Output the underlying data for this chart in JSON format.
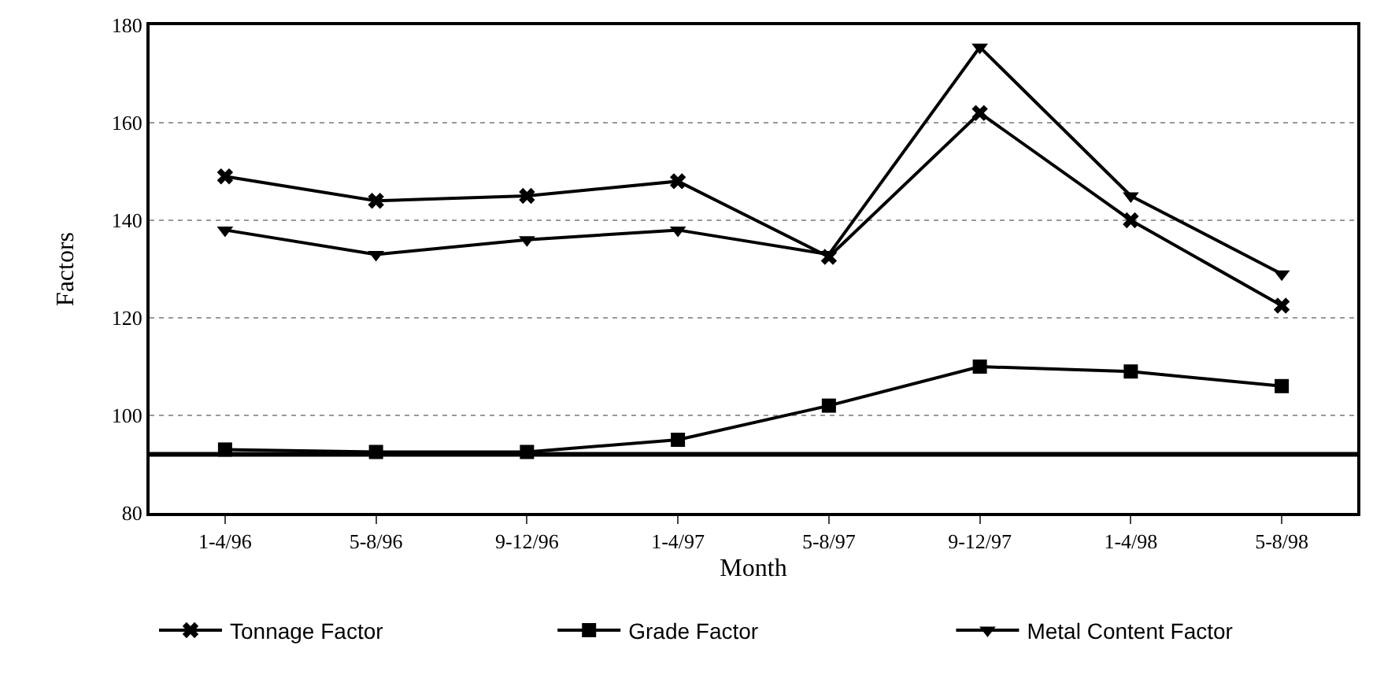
{
  "chart_data": {
    "type": "line",
    "xlabel": "Month",
    "ylabel": "Factors",
    "categories": [
      "1-4/96",
      "5-8/96",
      "9-12/96",
      "1-4/97",
      "5-8/97",
      "9-12/97",
      "1-4/98",
      "5-8/98"
    ],
    "series": [
      {
        "name": "Tonnage Factor",
        "color": "#000000",
        "marker": "cross",
        "values": [
          149,
          144,
          145,
          148,
          132.5,
          162,
          140,
          122.5
        ]
      },
      {
        "name": "Grade Factor",
        "color": "#000000",
        "marker": "square",
        "values": [
          93,
          92.5,
          92.5,
          95,
          102,
          110,
          109,
          106
        ]
      },
      {
        "name": "Metal Content Factor",
        "color": "#000000",
        "marker": "triangle-down",
        "values": [
          138,
          133,
          136,
          138,
          133,
          175.5,
          145,
          129
        ]
      }
    ],
    "ylim": [
      80,
      180
    ],
    "yticks": [
      80,
      100,
      120,
      140,
      160,
      180
    ],
    "ref_lines": [
      {
        "axis": "y",
        "value": 92,
        "color": "#000000"
      }
    ],
    "grid": "y",
    "legend": "bottom",
    "line_style": "solid"
  }
}
